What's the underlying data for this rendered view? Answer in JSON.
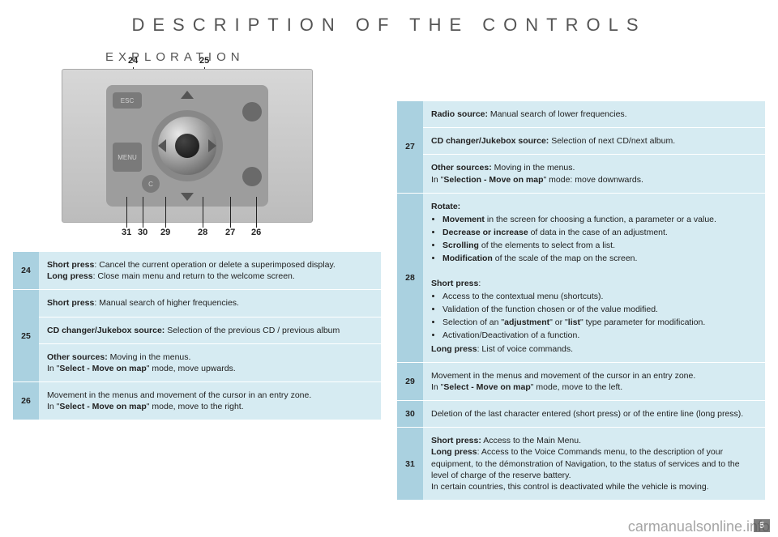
{
  "page": {
    "title": "DESCRIPTION OF THE CONTROLS",
    "section": "EXPLORATION",
    "page_number": "5",
    "watermark": "carmanualsonline.info"
  },
  "annotations_top": [
    "24",
    "25"
  ],
  "annotations_bottom": [
    "31",
    "30",
    "29",
    "28",
    "27",
    "26"
  ],
  "photo_labels": {
    "esc": "ESC",
    "menu": "MENU",
    "c": "C"
  },
  "left_table": [
    {
      "num": "24",
      "rows": [
        "<b>Short press</b>: Cancel the current operation or delete a superimposed display.<br><b>Long press</b>: Close main menu and return to the welcome screen."
      ]
    },
    {
      "num": "25",
      "rows": [
        "<b>Short press</b>: Manual search of higher frequencies.",
        "<b>CD changer/Jukebox source:</b> Selection of the previous CD / previous album",
        "<b>Other sources:</b> Moving in the menus.<br>In \"<b>Select - Move on map</b>\" mode, move upwards."
      ]
    },
    {
      "num": "26",
      "rows": [
        "Movement in the menus and movement of the cursor in an entry zone.<br>In \"<b>Select - Move on map</b>\" mode, move to the right."
      ]
    }
  ],
  "right_table": [
    {
      "num": "27",
      "rows": [
        "<b>Radio source:</b> Manual search of lower frequencies.",
        "<b>CD changer/Jukebox source:</b> Selection of next CD/next album.",
        "<b>Other sources:</b> Moving in the menus.<br>In \"<b>Selection - Move on map</b>\" mode: move downwards."
      ]
    },
    {
      "num": "28",
      "rows": [
        "<b>Rotate:</b><ul><li><b>Movement</b> in the screen for choosing a function, a parameter or a value.</li><li><b>Decrease or increase</b> of data in the case of an adjustment.</li><li><b>Scrolling</b> of the elements to select from a list.</li><li><b>Modification</b> of the scale of the map on the screen.</li></ul><br><b>Short press</b>:<ul><li>Access to the contextual menu (shortcuts).</li><li>Validation of the function chosen or of the value modified.</li><li>Selection of an \"<b>adjustment</b>\" or \"<b>list</b>\" type parameter for modification.</li><li>Activation/Deactivation of a function.</li></ul><b>Long press</b>: List of voice commands."
      ]
    },
    {
      "num": "29",
      "rows": [
        "Movement in the menus and movement of the cursor in an entry zone.<br>In \"<b>Select - Move on map</b>\" mode, move to the left."
      ]
    },
    {
      "num": "30",
      "rows": [
        "Deletion of the last character entered (short press) or of the entire line (long press)."
      ]
    },
    {
      "num": "31",
      "rows": [
        "<b>Short press:</b> Access to the Main Menu.<br><b>Long press</b>: Access to the Voice Commands menu, to the description of your equipment, to the démonstration of Navigation, to the status of services and to the level of charge of the reserve battery.<br>In certain countries, this control is deactivated while the vehicle is moving."
      ]
    }
  ]
}
